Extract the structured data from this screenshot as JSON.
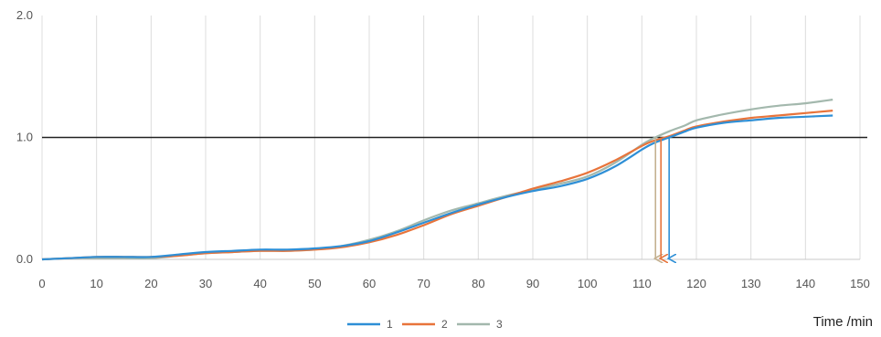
{
  "chart_data": {
    "type": "line",
    "title": "",
    "xlabel": "Time /min",
    "ylabel": "",
    "xlim": [
      0,
      150
    ],
    "ylim": [
      0,
      2
    ],
    "xticks": [
      "0",
      "10",
      "20",
      "30",
      "40",
      "50",
      "60",
      "70",
      "80",
      "90",
      "100",
      "110",
      "120",
      "130",
      "140",
      "150"
    ],
    "yticks": [
      "0.0",
      "1.0",
      "2.0"
    ],
    "grid": "vertical",
    "legend": "bottom",
    "reference_line": {
      "y": 1.0,
      "color": "#222222"
    },
    "series": [
      {
        "name": "1",
        "color": "#2e8fd6",
        "x": [
          0,
          5,
          10,
          15,
          20,
          25,
          30,
          35,
          40,
          45,
          50,
          55,
          60,
          65,
          70,
          75,
          80,
          85,
          90,
          95,
          100,
          105,
          110,
          112,
          115,
          118,
          120,
          125,
          130,
          135,
          140,
          145
        ],
        "y": [
          0.0,
          0.01,
          0.02,
          0.02,
          0.02,
          0.04,
          0.06,
          0.07,
          0.08,
          0.08,
          0.09,
          0.11,
          0.15,
          0.22,
          0.3,
          0.38,
          0.45,
          0.51,
          0.56,
          0.6,
          0.66,
          0.76,
          0.9,
          0.95,
          1.0,
          1.05,
          1.08,
          1.12,
          1.14,
          1.16,
          1.17,
          1.18
        ]
      },
      {
        "name": "2",
        "color": "#e8743b",
        "x": [
          0,
          5,
          10,
          15,
          20,
          25,
          30,
          35,
          40,
          45,
          50,
          55,
          60,
          65,
          70,
          75,
          80,
          85,
          90,
          95,
          100,
          105,
          110,
          112,
          115,
          118,
          120,
          125,
          130,
          135,
          140,
          145
        ],
        "y": [
          0.0,
          0.01,
          0.02,
          0.02,
          0.02,
          0.03,
          0.05,
          0.06,
          0.07,
          0.07,
          0.08,
          0.1,
          0.14,
          0.2,
          0.28,
          0.37,
          0.44,
          0.51,
          0.58,
          0.64,
          0.71,
          0.81,
          0.93,
          0.97,
          1.01,
          1.06,
          1.09,
          1.13,
          1.16,
          1.18,
          1.2,
          1.22
        ]
      },
      {
        "name": "3",
        "color": "#a3b8ad",
        "x": [
          0,
          5,
          10,
          15,
          20,
          25,
          30,
          35,
          40,
          45,
          50,
          55,
          60,
          65,
          70,
          75,
          80,
          85,
          90,
          95,
          100,
          105,
          110,
          112,
          115,
          118,
          120,
          125,
          130,
          135,
          140,
          145
        ],
        "y": [
          0.0,
          0.01,
          0.01,
          0.01,
          0.01,
          0.03,
          0.05,
          0.06,
          0.07,
          0.07,
          0.08,
          0.11,
          0.16,
          0.23,
          0.32,
          0.4,
          0.46,
          0.52,
          0.57,
          0.62,
          0.68,
          0.79,
          0.94,
          0.99,
          1.05,
          1.1,
          1.14,
          1.19,
          1.23,
          1.26,
          1.28,
          1.31
        ]
      }
    ],
    "arrows": [
      {
        "series": "3",
        "x": 112.5,
        "color": "#c4b08f"
      },
      {
        "series": "2",
        "x": 113.5,
        "color": "#e8743b"
      },
      {
        "series": "1",
        "x": 115.0,
        "color": "#2e8fd6"
      }
    ]
  }
}
